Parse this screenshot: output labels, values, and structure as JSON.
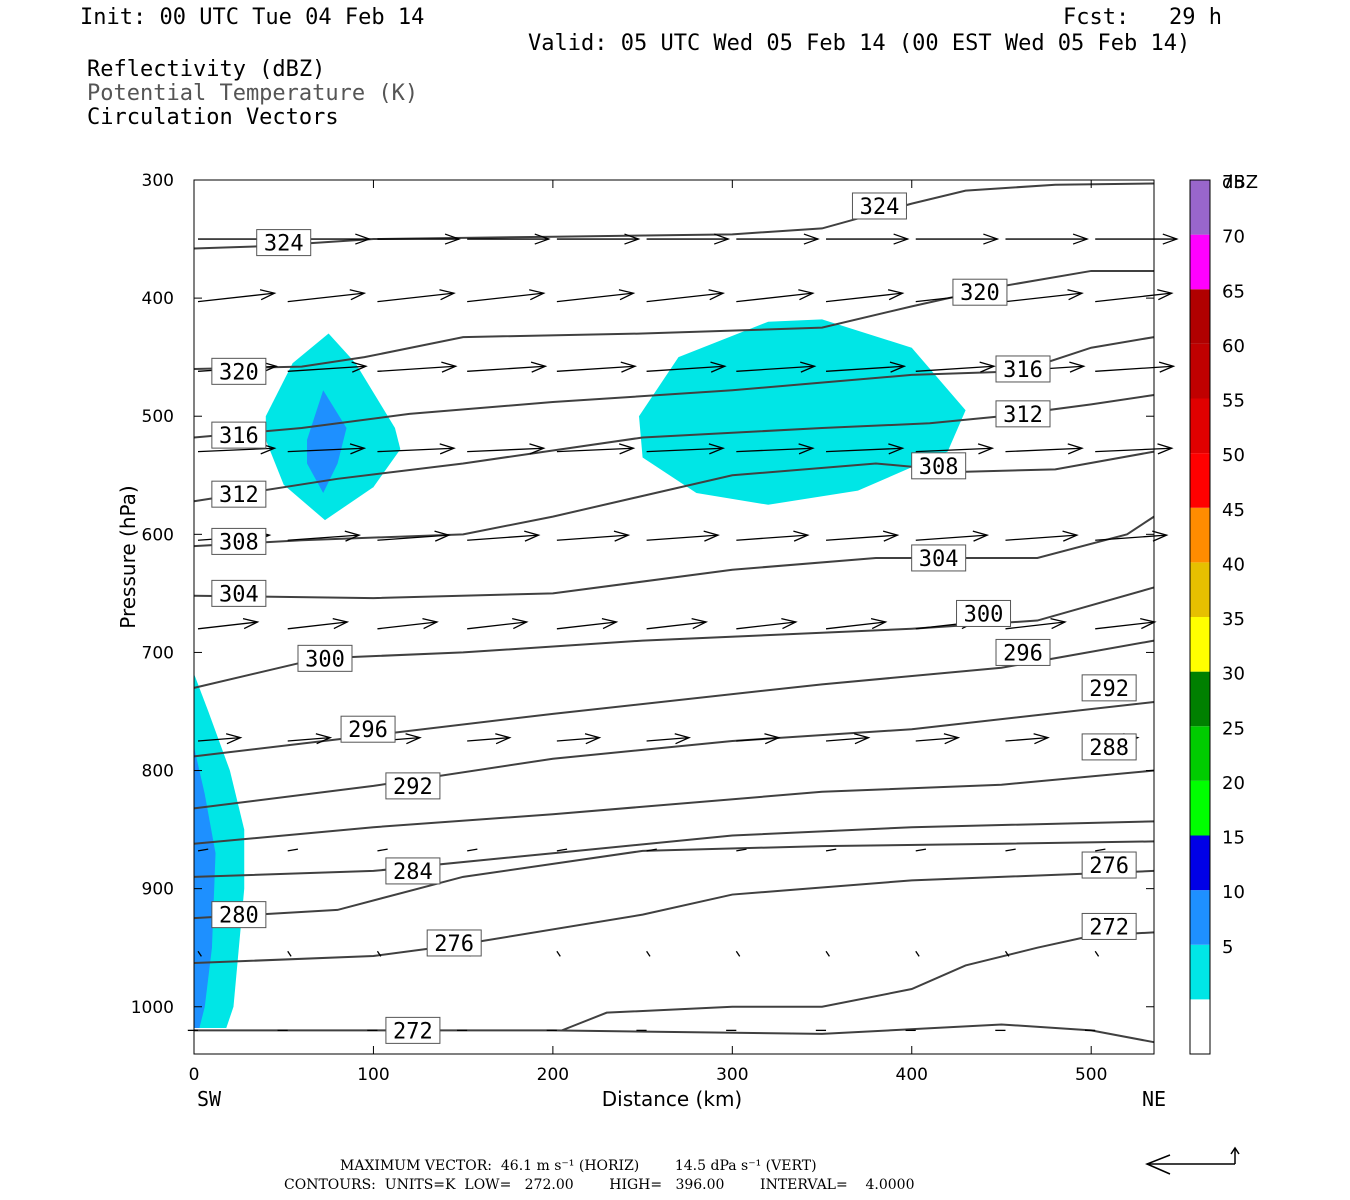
{
  "header": {
    "init": "Init: 00 UTC Tue 04 Feb 14",
    "fcst": "Fcst:   29 h",
    "valid": "Valid: 05 UTC Wed 05 Feb 14 (00 EST Wed 05 Feb 14)",
    "fields": [
      "Reflectivity (dBZ)",
      "Potential Temperature (K)",
      "Circulation Vectors"
    ]
  },
  "footer": {
    "max_vector": "MAXIMUM VECTOR:  46.1 m s⁻¹ (HORIZ)        14.5 dPa s⁻¹ (VERT)",
    "contours": "CONTOURS:  UNITS=K  LOW=   272.00        HIGH=   396.00        INTERVAL=    4.0000"
  },
  "colors": {
    "cyan": "#00e6e6",
    "blue": "#1e90ff",
    "contour": "#404040"
  },
  "chart_data": {
    "type": "cross-section",
    "xlabel": "Distance (km)",
    "ylabel": "Pressure (hPa)",
    "xlim": [
      0,
      535
    ],
    "ylim": [
      1040,
      300
    ],
    "xticks": [
      0,
      100,
      200,
      300,
      400,
      500
    ],
    "yticks": [
      300,
      400,
      500,
      600,
      700,
      800,
      900,
      1000
    ],
    "end_labels": {
      "left": "SW",
      "right": "NE"
    },
    "colorbar": {
      "unit": "dBZ",
      "bins": [
        {
          "label": "",
          "color": "#ffffff"
        },
        {
          "label": "5",
          "color": "#00e6e6"
        },
        {
          "label": "10",
          "color": "#1e90ff"
        },
        {
          "label": "15",
          "color": "#0000e6"
        },
        {
          "label": "20",
          "color": "#00ff00"
        },
        {
          "label": "25",
          "color": "#00cc00"
        },
        {
          "label": "30",
          "color": "#008000"
        },
        {
          "label": "35",
          "color": "#ffff00"
        },
        {
          "label": "40",
          "color": "#e6c000"
        },
        {
          "label": "45",
          "color": "#ff8c00"
        },
        {
          "label": "50",
          "color": "#ff0000"
        },
        {
          "label": "55",
          "color": "#e00000"
        },
        {
          "label": "60",
          "color": "#c00000"
        },
        {
          "label": "65",
          "color": "#b00000"
        },
        {
          "label": "70",
          "color": "#ff00ff"
        },
        {
          "label": "75",
          "color": "#9966cc"
        }
      ]
    },
    "reflectivity": [
      {
        "level": 5,
        "points": [
          [
            40,
            500
          ],
          [
            55,
            455
          ],
          [
            75,
            430
          ],
          [
            90,
            455
          ],
          [
            112,
            510
          ],
          [
            115,
            528
          ],
          [
            100,
            560
          ],
          [
            73,
            588
          ],
          [
            50,
            558
          ],
          [
            40,
            520
          ]
        ]
      },
      {
        "level": 10,
        "points": [
          [
            63,
            520
          ],
          [
            72,
            478
          ],
          [
            85,
            510
          ],
          [
            80,
            540
          ],
          [
            72,
            565
          ],
          [
            63,
            540
          ]
        ]
      },
      {
        "level": 5,
        "points": [
          [
            248,
            500
          ],
          [
            270,
            450
          ],
          [
            320,
            420
          ],
          [
            350,
            418
          ],
          [
            400,
            442
          ],
          [
            430,
            495
          ],
          [
            420,
            530
          ],
          [
            370,
            563
          ],
          [
            320,
            575
          ],
          [
            280,
            565
          ],
          [
            250,
            535
          ]
        ]
      },
      {
        "level": 5,
        "points": [
          [
            0,
            718
          ],
          [
            8,
            750
          ],
          [
            20,
            800
          ],
          [
            28,
            850
          ],
          [
            28,
            900
          ],
          [
            25,
            950
          ],
          [
            22,
            1000
          ],
          [
            18,
            1018
          ],
          [
            0,
            1018
          ]
        ]
      },
      {
        "level": 10,
        "points": [
          [
            0,
            780
          ],
          [
            6,
            820
          ],
          [
            12,
            870
          ],
          [
            10,
            950
          ],
          [
            6,
            1000
          ],
          [
            3,
            1018
          ],
          [
            0,
            1018
          ]
        ]
      }
    ],
    "theta_contours": [
      {
        "label": "324",
        "points": [
          [
            0,
            358
          ],
          [
            40,
            356
          ],
          [
            100,
            350
          ],
          [
            200,
            348
          ],
          [
            300,
            346
          ],
          [
            350,
            341
          ],
          [
            400,
            320
          ],
          [
            430,
            309
          ],
          [
            480,
            304
          ],
          [
            535,
            303
          ]
        ],
        "labels": [
          [
            50,
            353
          ],
          [
            382,
            322
          ]
        ]
      },
      {
        "label": "320",
        "points": [
          [
            0,
            460
          ],
          [
            60,
            458
          ],
          [
            95,
            450
          ],
          [
            150,
            433
          ],
          [
            250,
            430
          ],
          [
            350,
            425
          ],
          [
            400,
            407
          ],
          [
            450,
            390
          ],
          [
            500,
            377
          ],
          [
            535,
            377
          ]
        ],
        "labels": [
          [
            25,
            462
          ],
          [
            438,
            395
          ]
        ]
      },
      {
        "label": "316",
        "points": [
          [
            0,
            518
          ],
          [
            60,
            510
          ],
          [
            120,
            498
          ],
          [
            200,
            488
          ],
          [
            300,
            478
          ],
          [
            400,
            465
          ],
          [
            460,
            462
          ],
          [
            500,
            442
          ],
          [
            535,
            433
          ]
        ],
        "labels": [
          [
            25,
            516
          ],
          [
            462,
            460
          ]
        ]
      },
      {
        "label": "312",
        "points": [
          [
            0,
            572
          ],
          [
            80,
            553
          ],
          [
            150,
            540
          ],
          [
            250,
            518
          ],
          [
            350,
            510
          ],
          [
            410,
            506
          ],
          [
            450,
            500
          ],
          [
            500,
            490
          ],
          [
            535,
            482
          ]
        ],
        "labels": [
          [
            25,
            566
          ],
          [
            462,
            498
          ]
        ]
      },
      {
        "label": "308",
        "points": [
          [
            0,
            610
          ],
          [
            60,
            605
          ],
          [
            150,
            600
          ],
          [
            200,
            585
          ],
          [
            300,
            550
          ],
          [
            380,
            540
          ],
          [
            430,
            547
          ],
          [
            480,
            545
          ],
          [
            535,
            530
          ]
        ],
        "labels": [
          [
            25,
            606
          ],
          [
            415,
            542
          ]
        ]
      },
      {
        "label": "304",
        "points": [
          [
            0,
            652
          ],
          [
            100,
            654
          ],
          [
            200,
            650
          ],
          [
            300,
            630
          ],
          [
            380,
            620
          ],
          [
            470,
            620
          ],
          [
            520,
            600
          ],
          [
            535,
            585
          ]
        ],
        "labels": [
          [
            25,
            650
          ],
          [
            415,
            620
          ]
        ]
      },
      {
        "label": "300",
        "points": [
          [
            0,
            730
          ],
          [
            70,
            705
          ],
          [
            150,
            700
          ],
          [
            250,
            690
          ],
          [
            400,
            680
          ],
          [
            470,
            673
          ],
          [
            535,
            645
          ]
        ],
        "labels": [
          [
            73,
            705
          ],
          [
            440,
            667
          ]
        ]
      },
      {
        "label": "296",
        "points": [
          [
            0,
            788
          ],
          [
            100,
            770
          ],
          [
            200,
            752
          ],
          [
            350,
            727
          ],
          [
            450,
            713
          ],
          [
            535,
            690
          ]
        ],
        "labels": [
          [
            97,
            765
          ],
          [
            462,
            700
          ]
        ]
      },
      {
        "label": "292",
        "points": [
          [
            0,
            832
          ],
          [
            100,
            813
          ],
          [
            200,
            790
          ],
          [
            300,
            775
          ],
          [
            400,
            765
          ],
          [
            535,
            742
          ]
        ],
        "labels": [
          [
            122,
            813
          ],
          [
            510,
            730
          ]
        ]
      },
      {
        "label": "288",
        "points": [
          [
            0,
            862
          ],
          [
            100,
            848
          ],
          [
            200,
            837
          ],
          [
            350,
            818
          ],
          [
            450,
            812
          ],
          [
            535,
            800
          ]
        ],
        "labels": [
          [
            510,
            780
          ]
        ]
      },
      {
        "label": "284",
        "points": [
          [
            0,
            890
          ],
          [
            100,
            885
          ],
          [
            200,
            870
          ],
          [
            300,
            855
          ],
          [
            400,
            848
          ],
          [
            535,
            843
          ]
        ],
        "labels": [
          [
            122,
            885
          ]
        ]
      },
      {
        "label": "280",
        "points": [
          [
            0,
            925
          ],
          [
            80,
            918
          ],
          [
            150,
            890
          ],
          [
            250,
            868
          ],
          [
            350,
            864
          ],
          [
            450,
            862
          ],
          [
            535,
            860
          ]
        ],
        "labels": [
          [
            25,
            922
          ]
        ]
      },
      {
        "label": "276",
        "points": [
          [
            0,
            963
          ],
          [
            100,
            957
          ],
          [
            150,
            947
          ],
          [
            250,
            922
          ],
          [
            300,
            905
          ],
          [
            400,
            893
          ],
          [
            535,
            885
          ]
        ],
        "labels": [
          [
            145,
            946
          ],
          [
            510,
            880
          ]
        ]
      },
      {
        "label": "272",
        "points": [
          [
            0,
            1020
          ],
          [
            200,
            1020
          ],
          [
            350,
            1023
          ],
          [
            450,
            1015
          ],
          [
            500,
            1020
          ],
          [
            535,
            1030
          ]
        ],
        "labels": [
          [
            122,
            1020
          ],
          [
            510,
            932
          ]
        ]
      },
      {
        "label": "",
        "points": [
          [
            205,
            1020
          ],
          [
            230,
            1005
          ],
          [
            300,
            1000
          ],
          [
            350,
            1000
          ],
          [
            400,
            985
          ],
          [
            430,
            965
          ],
          [
            470,
            950
          ],
          [
            500,
            940
          ],
          [
            535,
            937
          ]
        ],
        "labels": []
      }
    ],
    "vectors": [
      {
        "y": 350,
        "dx": 48,
        "dy": 0
      },
      {
        "y": 403,
        "dx": 45,
        "dy": -5
      },
      {
        "y": 462,
        "dx": 46,
        "dy": -3
      },
      {
        "y": 530,
        "dx": 45,
        "dy": -2
      },
      {
        "y": 605,
        "dx": 42,
        "dy": -3
      },
      {
        "y": 680,
        "dx": 35,
        "dy": -4
      },
      {
        "y": 775,
        "dx": 25,
        "dy": -2
      },
      {
        "y": 868,
        "dx": 6,
        "dy": -1
      },
      {
        "y": 953,
        "dx": 2,
        "dy": 3
      },
      {
        "y": 1020,
        "dx": -6,
        "dy": 0
      }
    ]
  }
}
